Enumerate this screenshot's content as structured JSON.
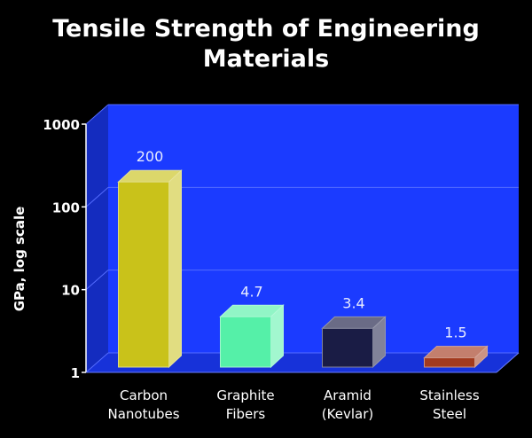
{
  "chart_data": {
    "type": "bar",
    "title_lines": [
      "Tensile Strength of Engineering",
      "Materials"
    ],
    "ylabel": "GPa, log scale",
    "yscale": "log",
    "ylim": [
      1,
      1000
    ],
    "yticks": [
      "1",
      "10",
      "100",
      "1000"
    ],
    "categories": [
      [
        "Carbon",
        "Nanotubes"
      ],
      [
        "Graphite",
        "Fibers"
      ],
      [
        "Aramid",
        "(Kevlar)"
      ],
      [
        "Stainless",
        "Steel"
      ]
    ],
    "values": [
      200,
      4.7,
      3.4,
      1.5
    ],
    "data_labels": [
      "200",
      "4.7",
      "3.4",
      "1.5"
    ],
    "bar_colors": [
      "#c9c21a",
      "#55f0a8",
      "#1a1c45",
      "#a23a1e"
    ],
    "background_color": "#1b3bff",
    "grid": true
  }
}
